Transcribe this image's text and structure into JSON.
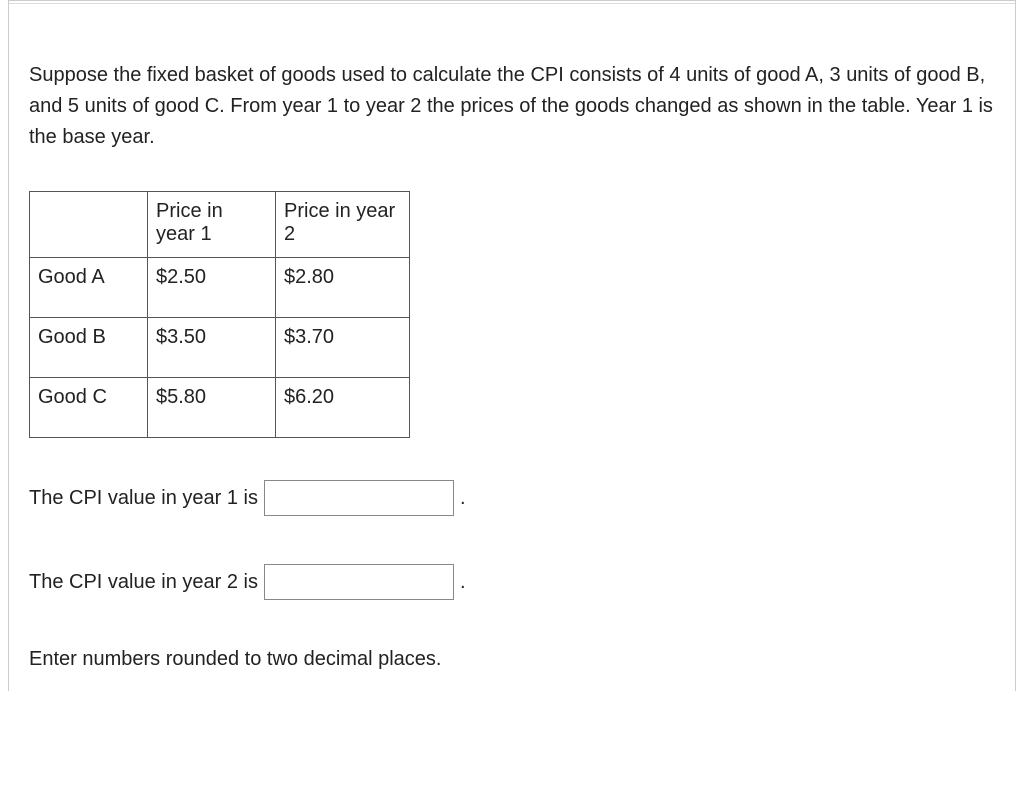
{
  "intro": "Suppose the fixed basket of goods used to calculate the CPI consists of 4 units of good A, 3 units of good B, and 5 units of good C. From year 1 to year 2 the prices of the goods changed as shown in the table. Year 1 is the base year.",
  "table": {
    "headers": {
      "blank": "",
      "col1": "Price in year 1",
      "col2": "Price in year 2"
    },
    "rows": [
      {
        "label": "Good A",
        "year1": "$2.50",
        "year2": "$2.80"
      },
      {
        "label": "Good B",
        "year1": "$3.50",
        "year2": "$3.70"
      },
      {
        "label": "Good C",
        "year1": "$5.80",
        "year2": "$6.20"
      }
    ]
  },
  "prompts": {
    "year1_label": "The CPI value in year 1 is",
    "year2_label": "The CPI value in year 2 is",
    "period": "."
  },
  "instruction": "Enter numbers rounded to two decimal places."
}
